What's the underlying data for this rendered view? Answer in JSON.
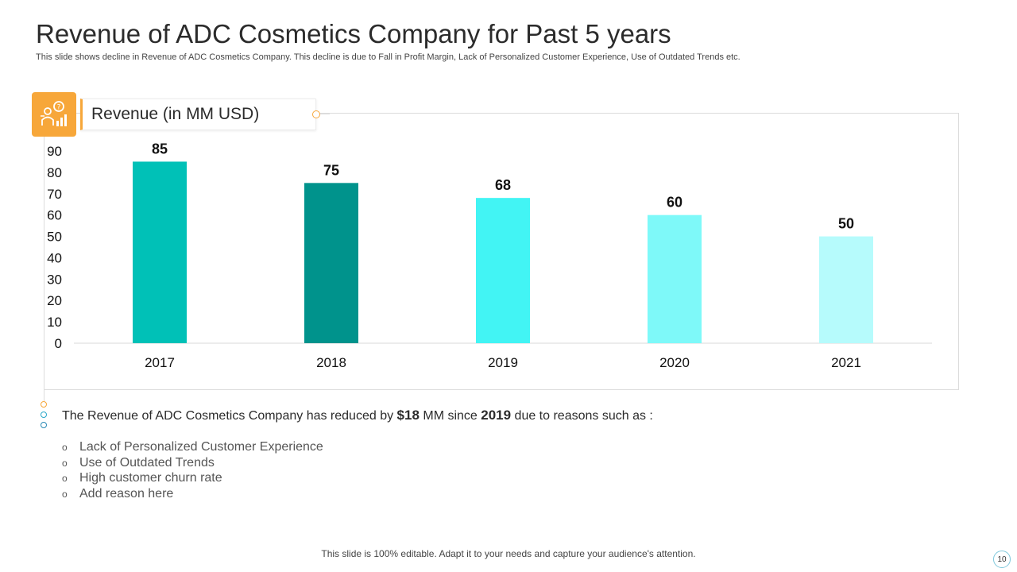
{
  "slide": {
    "title": "Revenue of ADC Cosmetics Company for Past 5 years",
    "subtitle": "This slide shows decline in Revenue of ADC Cosmetics Company. This decline is due to Fall in Profit Margin, Lack of Personalized Customer Experience, Use of Outdated Trends etc.",
    "chart_label": "Revenue (in MM USD)",
    "summary_prefix": "The Revenue of ADC Cosmetics Company has reduced by ",
    "summary_amount": "$18",
    "summary_mid": " MM since ",
    "summary_year": "2019",
    "summary_suffix": " due to reasons such as :",
    "bullet_glyph": "o",
    "reasons": [
      "Lack of Personalized Customer Experience",
      "Use of Outdated Trends",
      "High customer churn rate",
      "Add reason here"
    ],
    "footer": "This slide is 100% editable. Adapt it to your needs and capture your audience's attention.",
    "page_number": "10"
  },
  "colors": {
    "accent": "#f7a73a",
    "dot_colors": [
      "#f7a73a",
      "#2aa7c9",
      "#2a8ab5"
    ]
  },
  "chart_data": {
    "type": "bar",
    "title": "Revenue (in MM USD)",
    "categories": [
      "2017",
      "2018",
      "2019",
      "2020",
      "2021"
    ],
    "values": [
      85,
      75,
      68,
      60,
      50
    ],
    "bar_colors": [
      "#00c1b7",
      "#00938c",
      "#42f4f4",
      "#7ef9f9",
      "#b6fbfc"
    ],
    "ylim": [
      0,
      90
    ],
    "yticks": [
      0,
      10,
      20,
      30,
      40,
      50,
      60,
      70,
      80,
      90
    ],
    "xlabel": "",
    "ylabel": "",
    "grid": false,
    "data_labels": true
  }
}
